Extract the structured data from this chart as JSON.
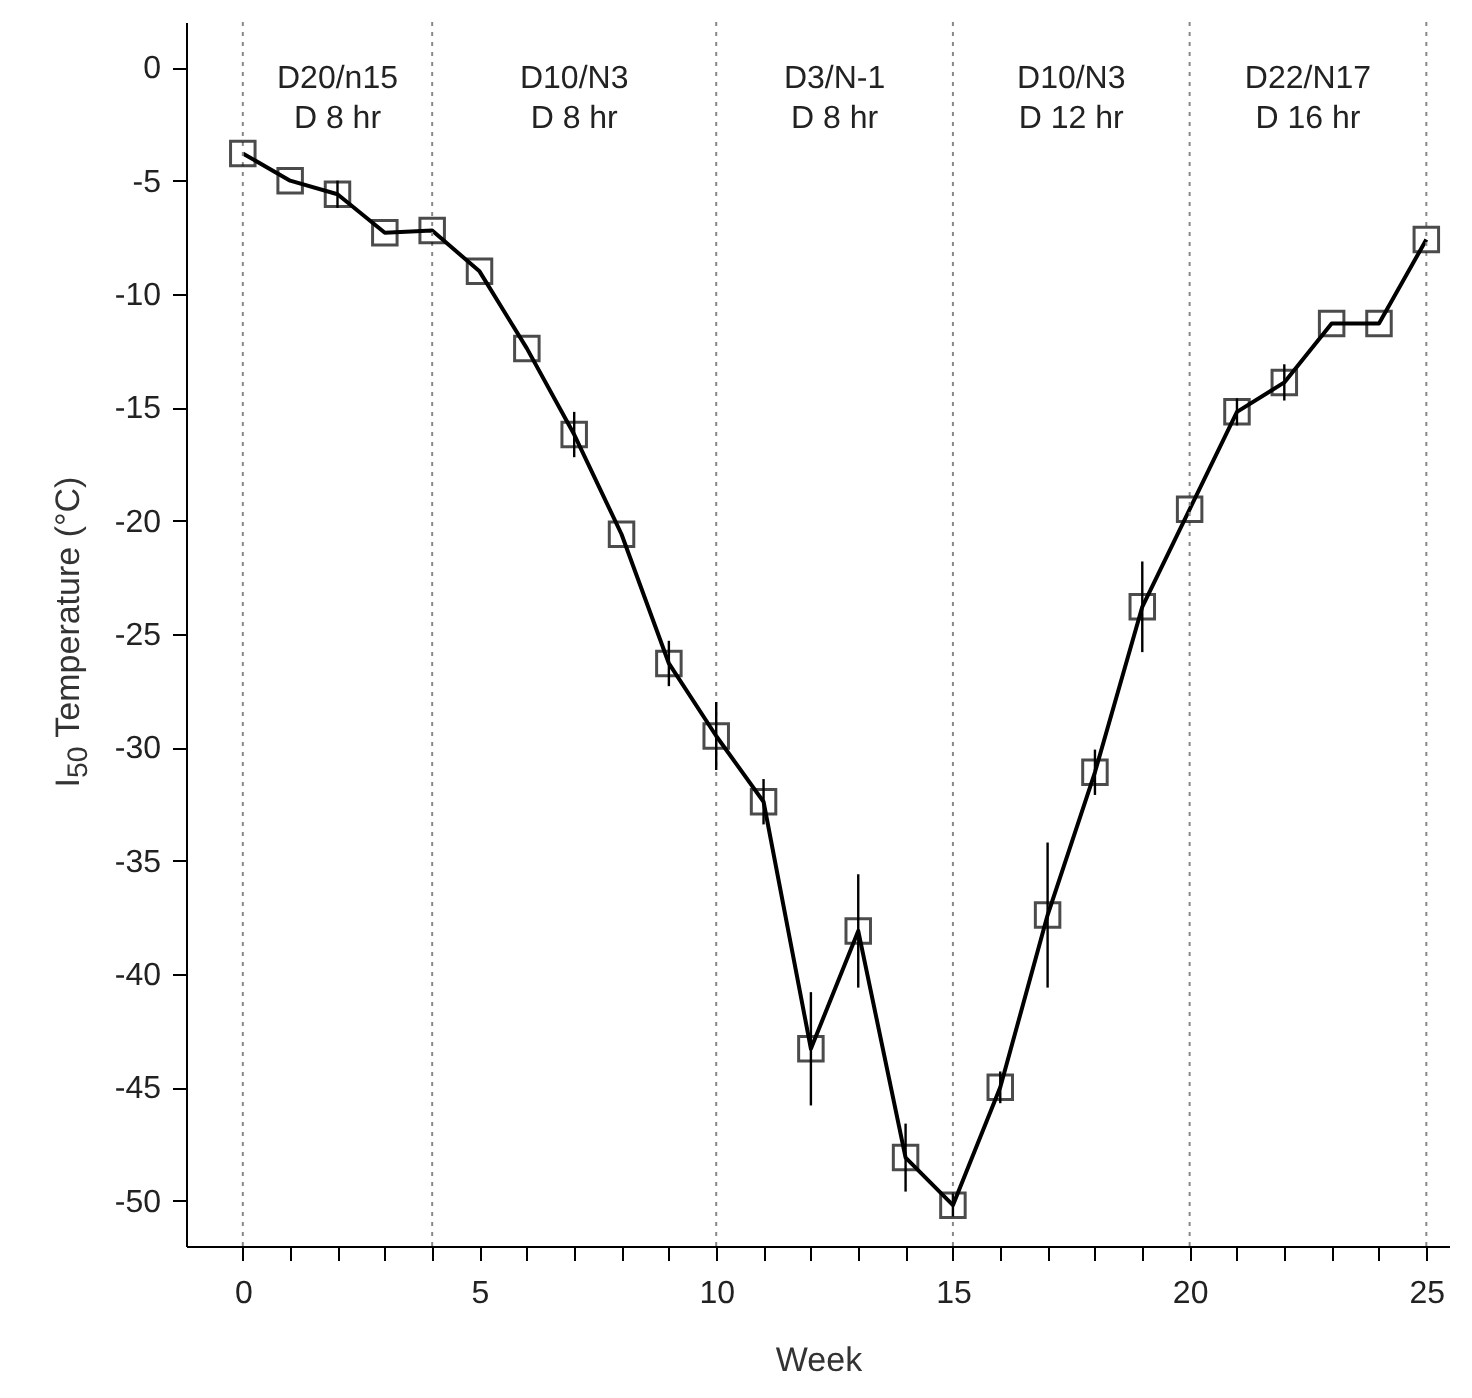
{
  "chart_data": {
    "type": "line",
    "xlabel": "Week",
    "ylabel": "I$_{50}$ Temperature (°C)",
    "x": [
      0,
      1,
      2,
      3,
      4,
      5,
      6,
      7,
      8,
      9,
      10,
      11,
      12,
      13,
      14,
      15,
      16,
      17,
      18,
      19,
      20,
      21,
      22,
      23,
      24,
      25
    ],
    "series": [
      {
        "color": "#000000",
        "values": [
          -3.8,
          -5.0,
          -5.6,
          -7.3,
          -7.2,
          -9.0,
          -12.4,
          -16.2,
          -20.6,
          -26.3,
          -29.5,
          -32.4,
          -43.3,
          -38.1,
          -48.1,
          -50.2,
          -45.0,
          -37.4,
          -31.1,
          -23.8,
          -19.5,
          -15.2,
          -13.9,
          -11.3,
          -11.3,
          -7.6
        ],
        "errors": [
          null,
          null,
          0.6,
          null,
          null,
          null,
          null,
          1.0,
          null,
          1.0,
          1.5,
          1.0,
          2.5,
          2.5,
          1.5,
          0.5,
          0.7,
          3.2,
          1.0,
          2.0,
          null,
          0.6,
          0.8,
          null,
          null,
          null
        ]
      }
    ],
    "marker": "square",
    "line_style": "solid",
    "grid": false,
    "xlim": [
      -1.2,
      25.5
    ],
    "xticks": [
      0,
      {
        "value": 1,
        "label": null
      },
      {
        "value": 2,
        "label": null
      },
      {
        "value": 3,
        "label": null
      },
      {
        "value": 4,
        "label": null
      },
      5,
      {
        "value": 6,
        "label": null
      },
      {
        "value": 7,
        "label": null
      },
      {
        "value": 8,
        "label": null
      },
      {
        "value": 9,
        "label": null
      },
      10,
      {
        "value": 11,
        "label": null
      },
      {
        "value": 12,
        "label": null
      },
      {
        "value": 13,
        "label": null
      },
      {
        "value": 14,
        "label": null
      },
      15,
      {
        "value": 16,
        "label": null
      },
      {
        "value": 17,
        "label": null
      },
      {
        "value": 18,
        "label": null
      },
      {
        "value": 19,
        "label": null
      },
      20,
      {
        "value": 21,
        "label": null
      },
      {
        "value": 22,
        "label": null
      },
      {
        "value": 23,
        "label": null
      },
      {
        "value": 24,
        "label": null
      },
      25
    ],
    "ylim": [
      -52,
      2
    ],
    "yticks": [
      0,
      -5,
      -10,
      -15,
      -20,
      -25,
      -30,
      -35,
      -40,
      -45,
      -50
    ],
    "ref_lines": [
      {
        "axis": "x",
        "value": 0,
        "line_style": "dotted",
        "color": "#888888"
      },
      {
        "axis": "x",
        "value": 4,
        "line_style": "dotted",
        "color": "#888888"
      },
      {
        "axis": "x",
        "value": 10,
        "line_style": "dotted",
        "color": "#888888"
      },
      {
        "axis": "x",
        "value": 15,
        "line_style": "dotted",
        "color": "#888888"
      },
      {
        "axis": "x",
        "value": 20,
        "line_style": "dotted",
        "color": "#888888"
      },
      {
        "axis": "x",
        "value": 25,
        "line_style": "dotted",
        "color": "#888888"
      }
    ],
    "annotations": [
      "D20/n15\nD 8 hr",
      "D10/N3\nD 8 hr",
      "D3/N-1\nD 8 hr",
      "D10/N3\nD 12 hr",
      "D22/N17\nD 16 hr"
    ]
  }
}
